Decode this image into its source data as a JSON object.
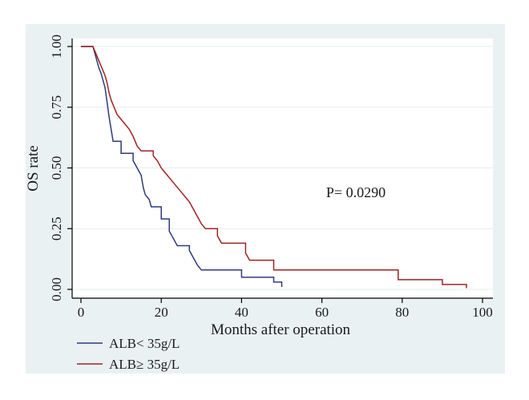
{
  "colors": {
    "outer_bg": "#eaf1f3",
    "plot_bg": "#ffffff",
    "grid": "#e6ecee",
    "axis": "#000000",
    "series_low": "#2e3a7c",
    "series_high": "#a02224"
  },
  "chart_data": {
    "type": "line",
    "subtype": "kaplan-meier-step",
    "title": "",
    "xlabel": "Months after operation",
    "ylabel": "OS rate",
    "xlim": [
      0,
      100
    ],
    "ylim": [
      0,
      1
    ],
    "x_ticks": [
      "0",
      "20",
      "40",
      "60",
      "80",
      "100"
    ],
    "y_ticks": [
      "0.00",
      "0.25",
      "0.50",
      "0.75",
      "1.00"
    ],
    "grid": "horizontal",
    "legend_position": "bottom-left",
    "annotation": "P= 0.0290",
    "series": [
      {
        "name": "ALB< 35g/L",
        "color": "#2e3a7c",
        "points": [
          [
            0,
            1.0
          ],
          [
            3,
            1.0
          ],
          [
            3.5,
            0.97
          ],
          [
            4,
            0.94
          ],
          [
            4.5,
            0.91
          ],
          [
            5,
            0.89
          ],
          [
            5.5,
            0.86
          ],
          [
            6,
            0.83
          ],
          [
            6.5,
            0.77
          ],
          [
            7,
            0.71
          ],
          [
            7.5,
            0.66
          ],
          [
            8,
            0.61
          ],
          [
            10,
            0.61
          ],
          [
            10,
            0.56
          ],
          [
            13,
            0.56
          ],
          [
            13,
            0.53
          ],
          [
            14,
            0.5
          ],
          [
            15,
            0.47
          ],
          [
            15.5,
            0.42
          ],
          [
            16,
            0.39
          ],
          [
            17,
            0.37
          ],
          [
            17.5,
            0.34
          ],
          [
            20,
            0.34
          ],
          [
            20,
            0.29
          ],
          [
            22,
            0.29
          ],
          [
            22,
            0.24
          ],
          [
            23,
            0.21
          ],
          [
            24,
            0.18
          ],
          [
            27,
            0.18
          ],
          [
            27,
            0.16
          ],
          [
            28,
            0.13
          ],
          [
            29,
            0.1
          ],
          [
            30,
            0.08
          ],
          [
            40,
            0.08
          ],
          [
            40,
            0.05
          ],
          [
            48,
            0.05
          ],
          [
            48,
            0.03
          ],
          [
            50,
            0.03
          ],
          [
            50,
            0.01
          ]
        ]
      },
      {
        "name": "ALB≥ 35g/L",
        "color": "#a02224",
        "points": [
          [
            0,
            1.0
          ],
          [
            3,
            1.0
          ],
          [
            3.5,
            0.98
          ],
          [
            4,
            0.96
          ],
          [
            4.5,
            0.94
          ],
          [
            5,
            0.92
          ],
          [
            5.5,
            0.9
          ],
          [
            6,
            0.88
          ],
          [
            6.5,
            0.85
          ],
          [
            7,
            0.81
          ],
          [
            7.5,
            0.78
          ],
          [
            8,
            0.76
          ],
          [
            8.5,
            0.74
          ],
          [
            9,
            0.72
          ],
          [
            10,
            0.7
          ],
          [
            11,
            0.68
          ],
          [
            12,
            0.66
          ],
          [
            13,
            0.63
          ],
          [
            13.5,
            0.61
          ],
          [
            14,
            0.59
          ],
          [
            15,
            0.57
          ],
          [
            18,
            0.57
          ],
          [
            18,
            0.55
          ],
          [
            19,
            0.53
          ],
          [
            20,
            0.5
          ],
          [
            21,
            0.48
          ],
          [
            22,
            0.46
          ],
          [
            23,
            0.44
          ],
          [
            24,
            0.42
          ],
          [
            25,
            0.4
          ],
          [
            26,
            0.38
          ],
          [
            27,
            0.36
          ],
          [
            28,
            0.33
          ],
          [
            29,
            0.3
          ],
          [
            30,
            0.27
          ],
          [
            31,
            0.25
          ],
          [
            34,
            0.25
          ],
          [
            34,
            0.22
          ],
          [
            35,
            0.19
          ],
          [
            41,
            0.19
          ],
          [
            41,
            0.15
          ],
          [
            42,
            0.12
          ],
          [
            48,
            0.12
          ],
          [
            48,
            0.08
          ],
          [
            79,
            0.08
          ],
          [
            79,
            0.04
          ],
          [
            90,
            0.04
          ],
          [
            90,
            0.02
          ],
          [
            96,
            0.02
          ],
          [
            96,
            0.005
          ]
        ]
      }
    ]
  }
}
